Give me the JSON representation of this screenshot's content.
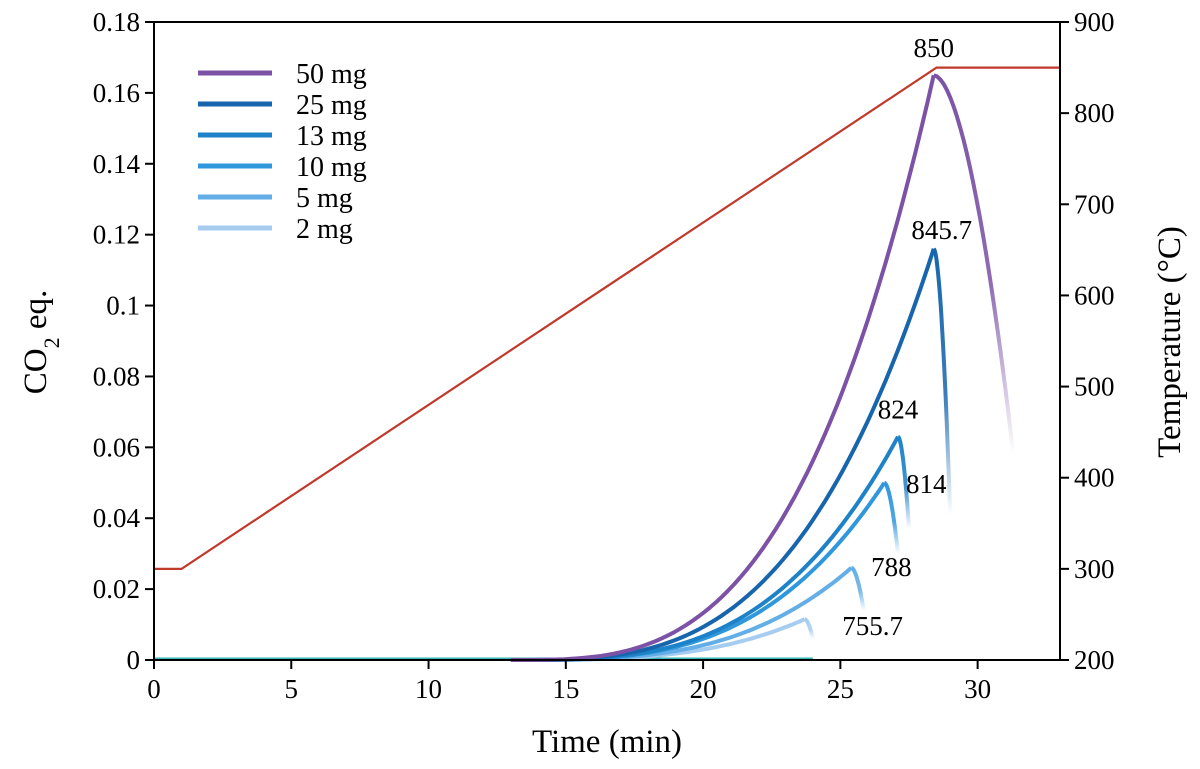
{
  "chart_data": {
    "type": "line",
    "x": {
      "label": "Time (min)",
      "range": [
        0,
        33
      ],
      "ticks": [
        0,
        5,
        10,
        15,
        20,
        25,
        30
      ]
    },
    "y_left": {
      "label": "CO",
      "label_sub": "2",
      "label_tail": " eq.",
      "range": [
        0,
        0.18
      ],
      "ticks": [
        0,
        0.02,
        0.04,
        0.06,
        0.08,
        0.1,
        0.12,
        0.14,
        0.16,
        0.18
      ],
      "tick_labels": [
        "0",
        "0.02",
        "0.04",
        "0.06",
        "0.08",
        "0.1",
        "0.12",
        "0.14",
        "0.16",
        "0.18"
      ]
    },
    "y_right": {
      "label": "Temperature (°C)",
      "range": [
        200,
        900
      ],
      "ticks": [
        200,
        300,
        400,
        500,
        600,
        700,
        800,
        900
      ]
    },
    "temperature_profile": {
      "color": "#c0392b",
      "axis": "right",
      "points": [
        [
          0,
          300
        ],
        [
          1,
          300
        ],
        [
          28.5,
          850
        ],
        [
          33,
          850
        ]
      ]
    },
    "series": [
      {
        "name": "50 mg",
        "color": "#7b52a6",
        "peak_x": 28.4,
        "peak_y": 0.165,
        "end_x": 31.3,
        "end_y": 0.058,
        "peak_label": "850"
      },
      {
        "name": "25 mg",
        "color": "#1766ad",
        "peak_x": 28.4,
        "peak_y": 0.116,
        "end_x": 29.0,
        "end_y": 0.041,
        "peak_label": "845.7"
      },
      {
        "name": "13 mg",
        "color": "#1e82c8",
        "peak_x": 27.1,
        "peak_y": 0.063,
        "end_x": 27.5,
        "end_y": 0.037,
        "peak_label": "824"
      },
      {
        "name": "10 mg",
        "color": "#2f97dc",
        "peak_x": 26.6,
        "peak_y": 0.05,
        "end_x": 27.1,
        "end_y": 0.03,
        "peak_label": "814"
      },
      {
        "name": "5 mg",
        "color": "#63aee6",
        "peak_x": 25.4,
        "peak_y": 0.026,
        "end_x": 25.85,
        "end_y": 0.014,
        "peak_label": "788"
      },
      {
        "name": "2 mg",
        "color": "#a6cdf0",
        "peak_x": 23.7,
        "peak_y": 0.0115,
        "end_x": 24.0,
        "end_y": 0.006,
        "peak_label": "755.7"
      }
    ],
    "baseline_color": "#39b5b5",
    "legend": "top-left"
  }
}
